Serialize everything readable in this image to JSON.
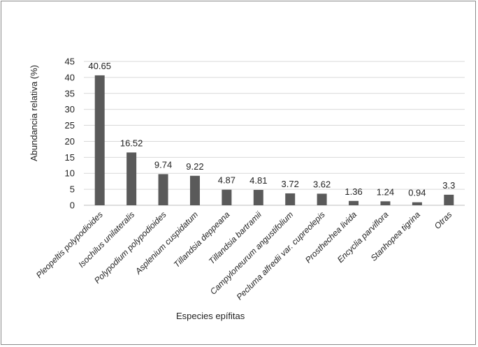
{
  "chart_data": {
    "type": "bar",
    "title": "",
    "xlabel": "Especies epífitas",
    "ylabel": "Abundancia relativa (%)",
    "ylim": [
      0,
      45
    ],
    "yticks": [
      0,
      5,
      10,
      15,
      20,
      25,
      30,
      35,
      40,
      45
    ],
    "grid": true,
    "legend": "none",
    "bar_color": "#5a5a5a",
    "categories": [
      "Pleopeltis polypodioides",
      "Isochilus unilateralis",
      "Polypodium polypodioides",
      "Asplenium cuspidatum",
      "Tillandsia deppeana",
      "Tillandsia bartramii",
      "Campyloneurum angustifolium",
      "Pecluma alfredii var. cupreolepis",
      "Prosthechea livida",
      "Encyclia parviflora",
      "Stanhopea tigrina",
      "Otras"
    ],
    "values": [
      40.65,
      16.52,
      9.74,
      9.22,
      4.87,
      4.81,
      3.72,
      3.62,
      1.36,
      1.24,
      0.94,
      3.3
    ],
    "data_labels": [
      "40.65",
      "16.52",
      "9.74",
      "9.22",
      "4.87",
      "4.81",
      "3.72",
      "3.62",
      "1.36",
      "1.24",
      "0.94",
      "3.3"
    ]
  }
}
